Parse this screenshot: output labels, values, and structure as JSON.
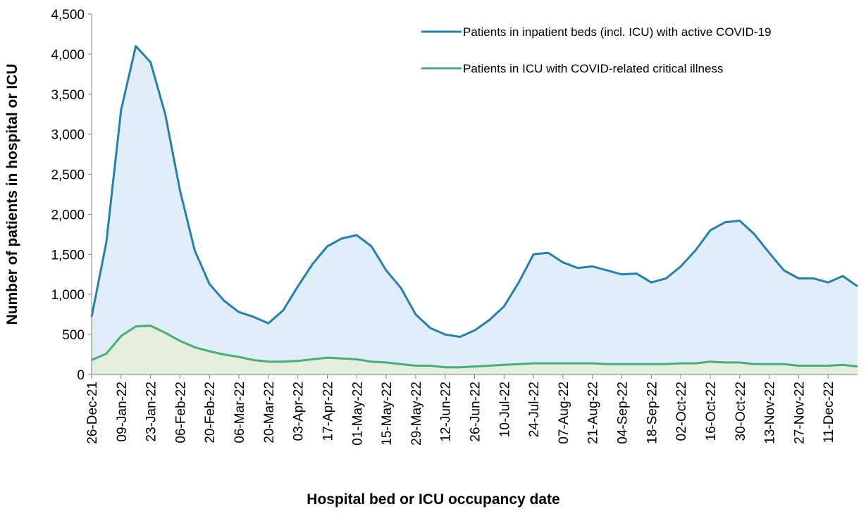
{
  "chart_data": {
    "type": "line",
    "ylabel": "Number of patients in hospital or ICU",
    "xlabel": "Hospital bed or ICU occupancy date",
    "categories": [
      "26-Dec-21",
      null,
      "09-Jan-22",
      null,
      "23-Jan-22",
      null,
      "06-Feb-22",
      null,
      "20-Feb-22",
      null,
      "06-Mar-22",
      null,
      "20-Mar-22",
      null,
      "03-Apr-22",
      null,
      "17-Apr-22",
      null,
      "01-May-22",
      null,
      "15-May-22",
      null,
      "29-May-22",
      null,
      "12-Jun-22",
      null,
      "26-Jun-22",
      null,
      "10-Jul-22",
      null,
      "24-Jul-22",
      null,
      "07-Aug-22",
      null,
      "21-Aug-22",
      null,
      "04-Sep-22",
      null,
      "18-Sep-22",
      null,
      "02-Oct-22",
      null,
      "16-Oct-22",
      null,
      "30-Oct-22",
      null,
      "13-Nov-22",
      null,
      "27-Nov-22",
      null,
      "11-Dec-22",
      null,
      null
    ],
    "series": [
      {
        "name": "Patients in inpatient beds (incl. ICU) with active COVID-19",
        "color": "#2a7fa8",
        "fill": "#deedf6",
        "values": [
          720,
          1650,
          3300,
          4100,
          3900,
          3250,
          2300,
          1550,
          1130,
          920,
          780,
          720,
          640,
          800,
          1100,
          1380,
          1600,
          1700,
          1740,
          1600,
          1300,
          1080,
          750,
          580,
          500,
          470,
          550,
          680,
          850,
          1150,
          1500,
          1520,
          1400,
          1330,
          1350,
          1300,
          1250,
          1260,
          1150,
          1200,
          1350,
          1550,
          1800,
          1900,
          1920,
          1750,
          1520,
          1300,
          1200,
          1200,
          1150,
          1230,
          1100
        ]
      },
      {
        "name": "Patients in ICU with COVID-related critical illness",
        "color": "#4daa7c",
        "fill": "#e3efdc",
        "values": [
          180,
          260,
          480,
          600,
          610,
          520,
          420,
          340,
          290,
          250,
          220,
          180,
          160,
          160,
          170,
          190,
          210,
          200,
          190,
          160,
          150,
          130,
          110,
          110,
          90,
          90,
          100,
          110,
          120,
          130,
          140,
          140,
          140,
          140,
          140,
          130,
          130,
          130,
          130,
          130,
          140,
          140,
          160,
          150,
          150,
          130,
          130,
          130,
          110,
          110,
          110,
          120,
          100
        ]
      }
    ],
    "ylim": [
      0,
      4500
    ],
    "yticks": [
      0,
      500,
      {
        "value": 1000,
        "label": "1,000"
      },
      {
        "value": 1500,
        "label": "1,500"
      },
      {
        "value": 2000,
        "label": "2,000"
      },
      {
        "value": 2500,
        "label": "2,500"
      },
      {
        "value": 3000,
        "label": "3,000"
      },
      {
        "value": 3500,
        "label": "3,500"
      },
      {
        "value": 4000,
        "label": "4,000"
      },
      {
        "value": 4500,
        "label": "4,500"
      }
    ],
    "legend": "upper right"
  }
}
